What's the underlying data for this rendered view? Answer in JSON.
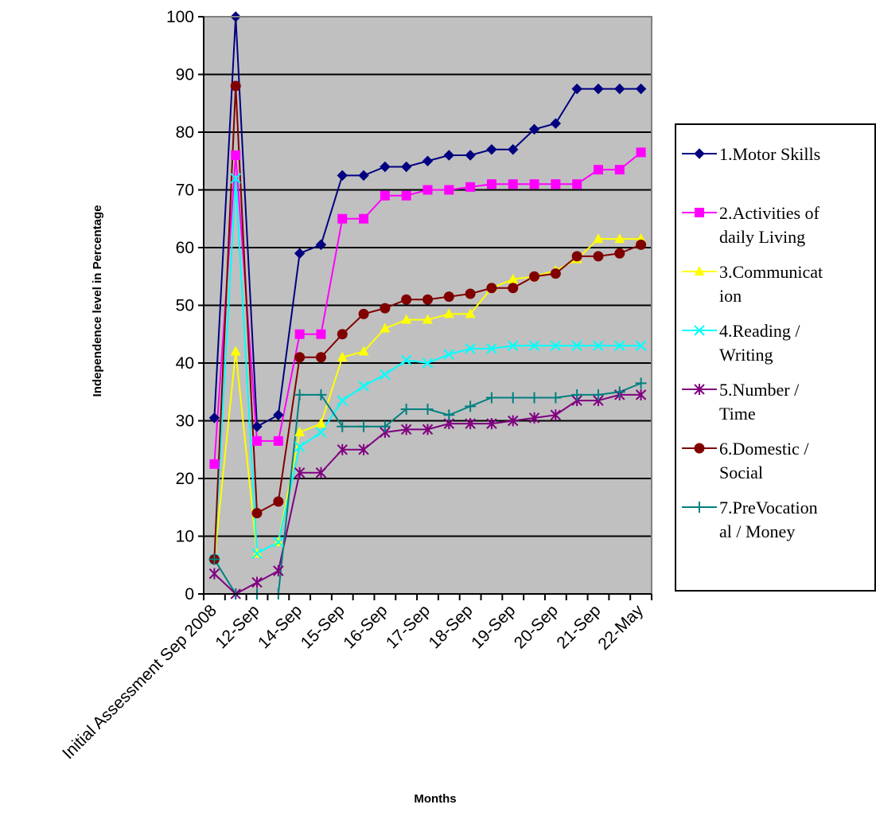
{
  "chart_data": {
    "type": "line",
    "title": "",
    "xlabel": "Months",
    "ylabel": "Independence level in Percentage",
    "ylim": [
      0,
      100
    ],
    "yticks": [
      0,
      10,
      20,
      30,
      40,
      50,
      60,
      70,
      80,
      90,
      100
    ],
    "grid": true,
    "legend_position": "right",
    "x_tick_labels": [
      "Initial Assessment Sep 2008",
      "12-Sep",
      "14-Sep",
      "15-Sep",
      "16-Sep",
      "17-Sep",
      "18-Sep",
      "19-Sep",
      "20-Sep",
      "21-Sep",
      "22-May"
    ],
    "series": [
      {
        "name": "1.Motor Skills",
        "legend_lines": [
          "1.Motor Skills"
        ],
        "color": "#000080",
        "marker": "diamond",
        "values": [
          30.5,
          100,
          29,
          31,
          59,
          60.5,
          72.5,
          72.5,
          74,
          74,
          75,
          76,
          76,
          77,
          77,
          80.5,
          81.5,
          87.5,
          87.5,
          87.5,
          87.5
        ]
      },
      {
        "name": "2.Activities of daily Living",
        "legend_lines": [
          "2.Activities of",
          "daily   Living"
        ],
        "color": "#FF00FF",
        "marker": "square",
        "values": [
          22.5,
          76,
          26.5,
          26.5,
          45,
          45,
          65,
          65,
          69,
          69,
          70,
          70,
          70.5,
          71,
          71,
          71,
          71,
          71,
          73.5,
          73.5,
          76.5
        ]
      },
      {
        "name": "3.Communication",
        "legend_lines": [
          "3.Communicat",
          "ion"
        ],
        "color": "#FFFF00",
        "marker": "triangle",
        "values": [
          6,
          42,
          7,
          9,
          28,
          29.5,
          41,
          42,
          46,
          47.5,
          47.5,
          48.5,
          48.5,
          53,
          54.5,
          55,
          56,
          58,
          61.5,
          61.5,
          61.5
        ]
      },
      {
        "name": "4.Reading / Writing",
        "legend_lines": [
          "4.Reading /",
          "Writing"
        ],
        "color": "#00FFFF",
        "marker": "x",
        "values": [
          6,
          72,
          7,
          9,
          25.5,
          28,
          33.5,
          36,
          38,
          40.5,
          40,
          41.5,
          42.5,
          42.5,
          43,
          43,
          43,
          43,
          43,
          43,
          43
        ]
      },
      {
        "name": "5.Number / Time",
        "legend_lines": [
          "5.Number /",
          "Time"
        ],
        "color": "#800080",
        "marker": "star",
        "values": [
          3.5,
          0,
          2,
          4,
          21,
          21,
          25,
          25,
          28,
          28.5,
          28.5,
          29.5,
          29.5,
          29.5,
          30,
          30.5,
          31,
          33.5,
          33.5,
          34.5,
          34.5
        ]
      },
      {
        "name": "6.Domestic / Social",
        "legend_lines": [
          "6.Domestic /",
          "Social"
        ],
        "color": "#800000",
        "marker": "circle",
        "values": [
          6,
          88,
          14,
          16,
          41,
          41,
          45,
          48.5,
          49.5,
          51,
          51,
          51.5,
          52,
          53,
          53,
          55,
          55.5,
          58.5,
          58.5,
          59,
          60.5
        ]
      },
      {
        "name": "7.PreVocational / Money",
        "legend_lines": [
          "7.PreVocation",
          "al / Money"
        ],
        "color": "#008080",
        "marker": "plus",
        "values": [
          6,
          0,
          0,
          0,
          34.5,
          34.5,
          29,
          29,
          29,
          32,
          32,
          31,
          32.5,
          34,
          34,
          34,
          34,
          34.5,
          34.5,
          35,
          36.5
        ]
      }
    ]
  }
}
